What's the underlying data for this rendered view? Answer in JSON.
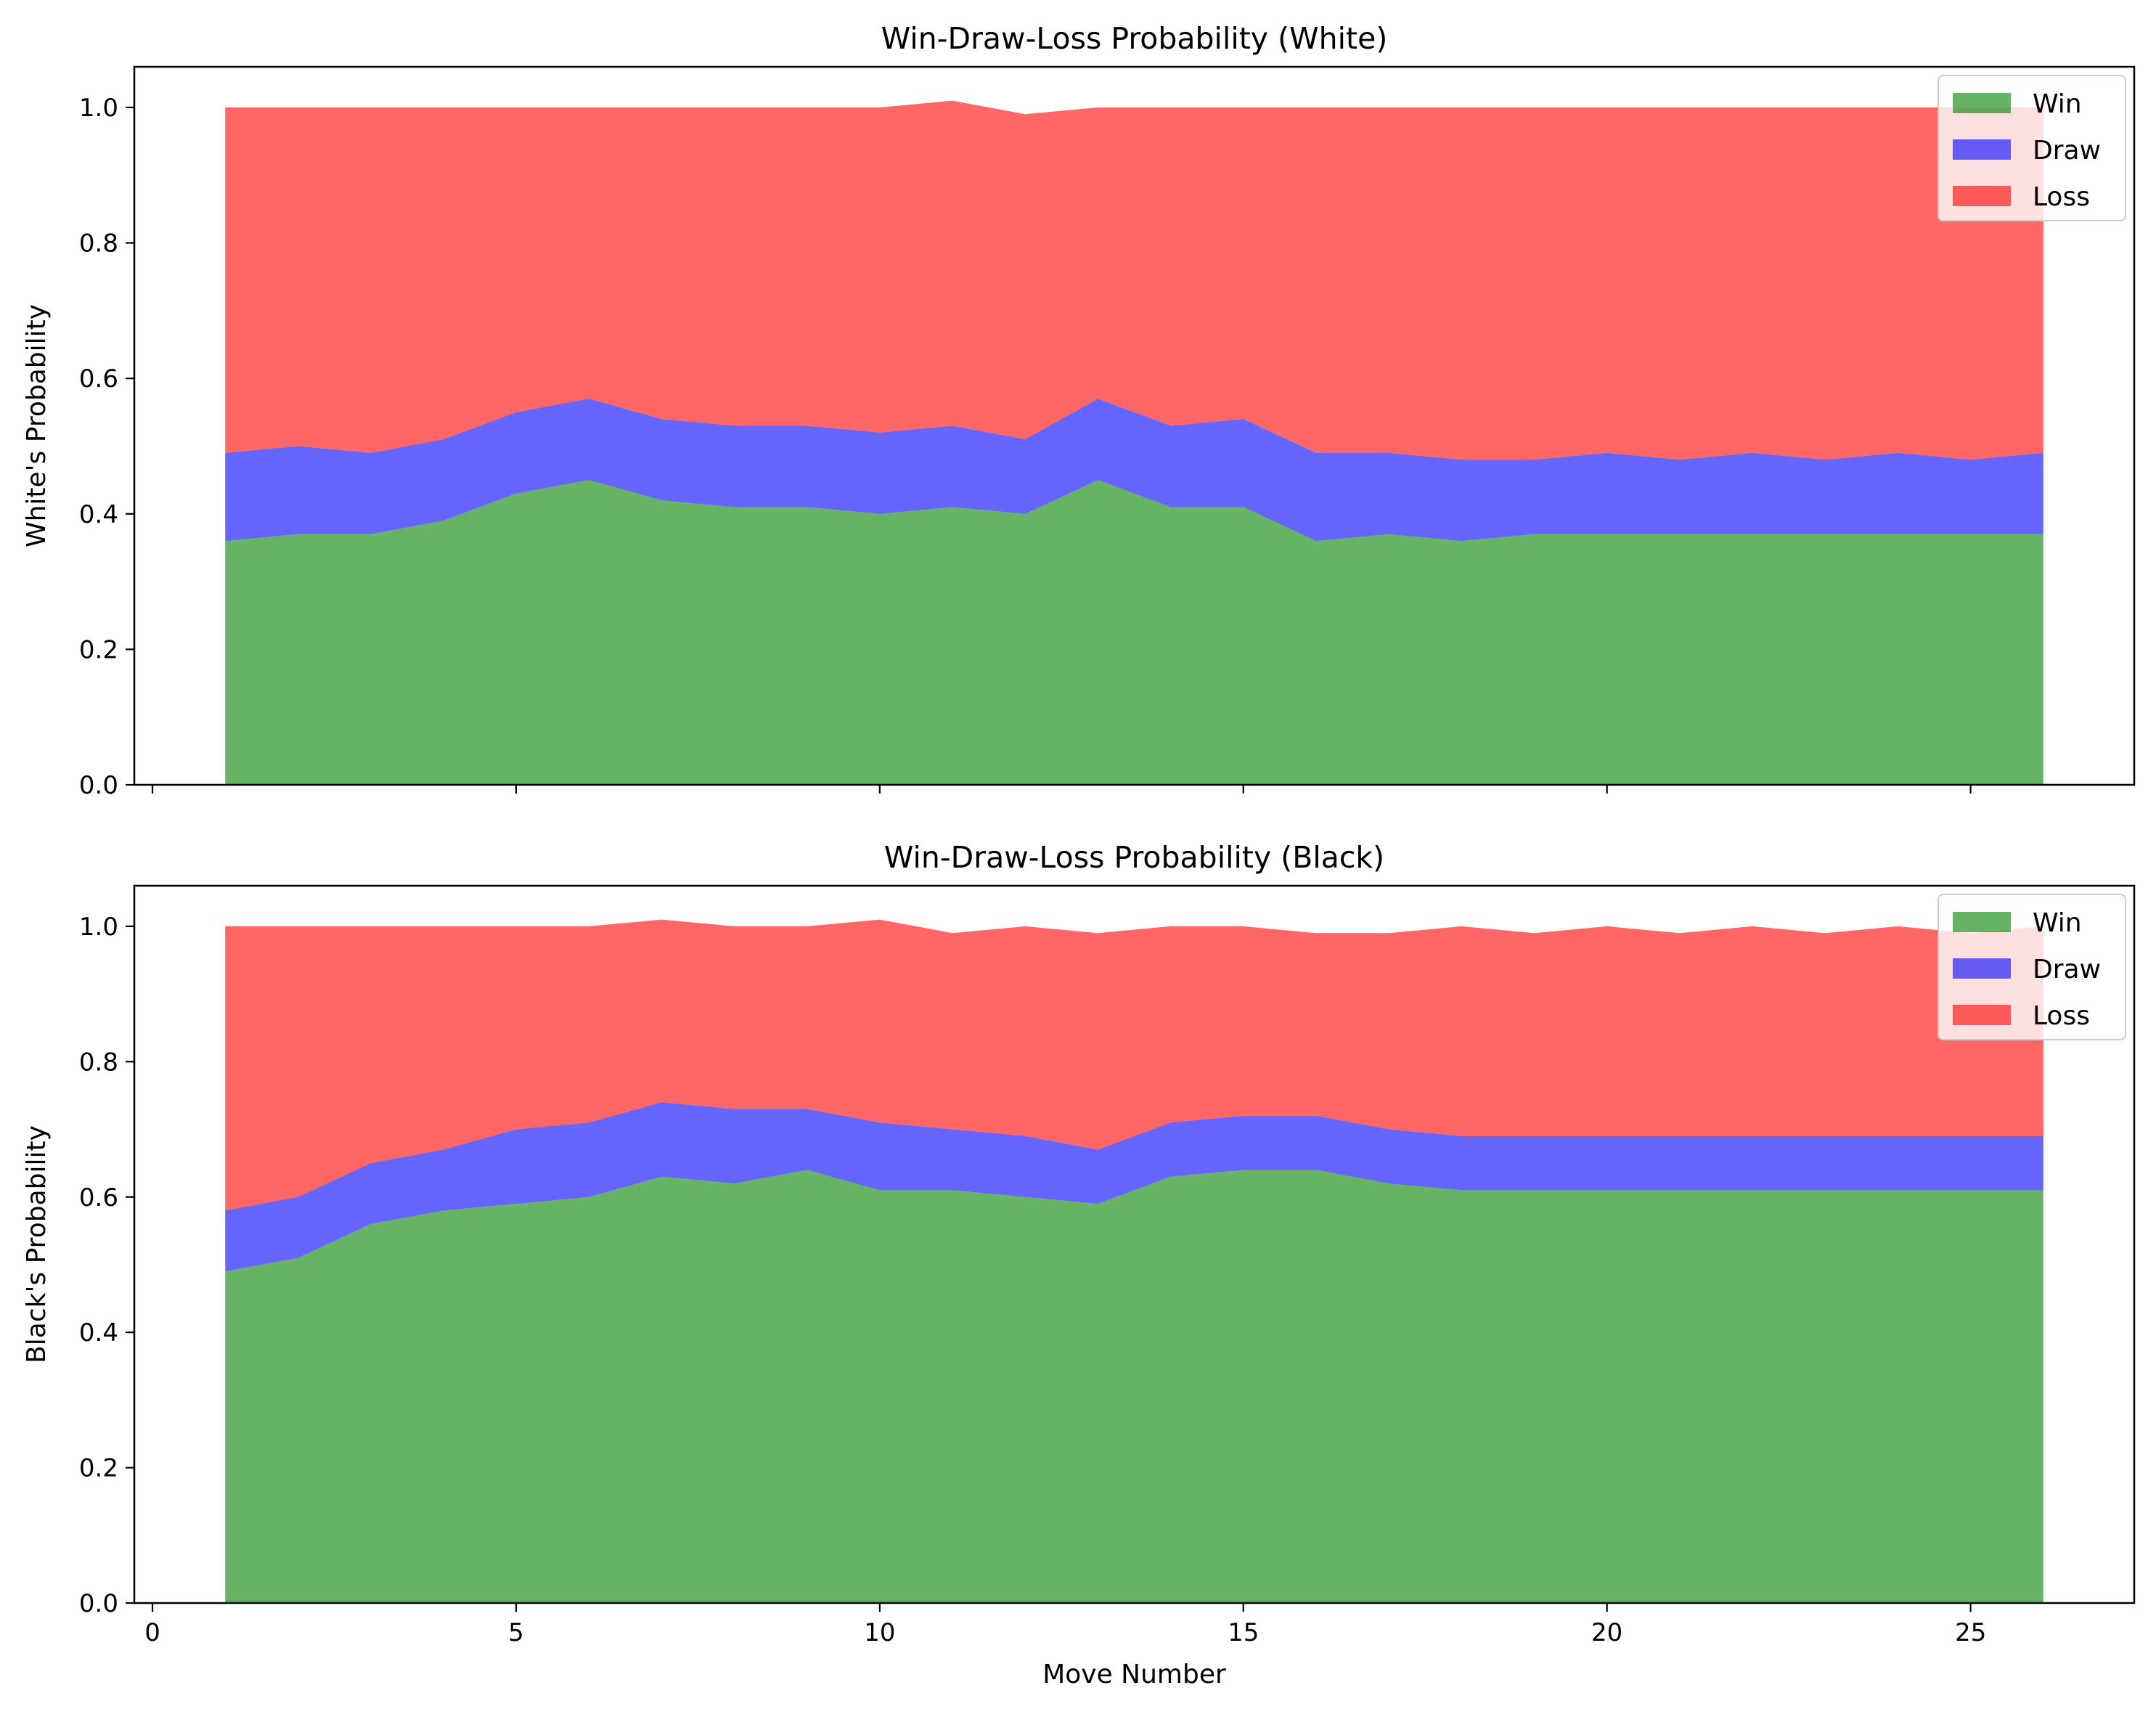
{
  "chart_data": [
    {
      "type": "area",
      "stacked": true,
      "title": "Win-Draw-Loss Probability (White)",
      "xlabel": "",
      "ylabel": "White's Probability",
      "x": [
        1,
        2,
        3,
        4,
        5,
        6,
        7,
        8,
        9,
        10,
        11,
        12,
        13,
        14,
        15,
        16,
        17,
        18,
        19,
        20,
        21,
        22,
        23,
        24,
        25,
        26
      ],
      "series": [
        {
          "name": "Win",
          "color": "#008000",
          "values": [
            0.36,
            0.37,
            0.37,
            0.39,
            0.43,
            0.45,
            0.42,
            0.41,
            0.41,
            0.4,
            0.41,
            0.4,
            0.45,
            0.41,
            0.41,
            0.36,
            0.37,
            0.36,
            0.37,
            0.37,
            0.37,
            0.37,
            0.37,
            0.37,
            0.37,
            0.37
          ]
        },
        {
          "name": "Draw",
          "color": "#0000ff",
          "values": [
            0.13,
            0.13,
            0.12,
            0.12,
            0.12,
            0.12,
            0.12,
            0.12,
            0.12,
            0.12,
            0.12,
            0.11,
            0.12,
            0.12,
            0.13,
            0.13,
            0.12,
            0.12,
            0.11,
            0.12,
            0.11,
            0.12,
            0.11,
            0.12,
            0.11,
            0.12
          ]
        },
        {
          "name": "Loss",
          "color": "#ff0000",
          "values": [
            0.51,
            0.5,
            0.51,
            0.49,
            0.45,
            0.43,
            0.46,
            0.47,
            0.47,
            0.48,
            0.48,
            0.48,
            0.43,
            0.47,
            0.46,
            0.51,
            0.51,
            0.52,
            0.52,
            0.51,
            0.52,
            0.51,
            0.52,
            0.51,
            0.52,
            0.51
          ]
        }
      ],
      "xlim": [
        -0.25,
        27.25
      ],
      "ylim": [
        0,
        1.06
      ],
      "xticks": [
        0,
        5,
        10,
        15,
        20,
        25
      ],
      "show_xtick_labels": false,
      "yticks": [
        0.0,
        0.2,
        0.4,
        0.6,
        0.8,
        1.0
      ],
      "ytick_labels": [
        "0.0",
        "0.2",
        "0.4",
        "0.6",
        "0.8",
        "1.0"
      ],
      "grid": false,
      "legend_position": "top-right",
      "opacity": 0.6
    },
    {
      "type": "area",
      "stacked": true,
      "title": "Win-Draw-Loss Probability (Black)",
      "xlabel": "Move Number",
      "ylabel": "Black's Probability",
      "x": [
        1,
        2,
        3,
        4,
        5,
        6,
        7,
        8,
        9,
        10,
        11,
        12,
        13,
        14,
        15,
        16,
        17,
        18,
        19,
        20,
        21,
        22,
        23,
        24,
        25,
        26
      ],
      "series": [
        {
          "name": "Win",
          "color": "#008000",
          "values": [
            0.49,
            0.51,
            0.56,
            0.58,
            0.59,
            0.6,
            0.63,
            0.62,
            0.64,
            0.61,
            0.61,
            0.6,
            0.59,
            0.63,
            0.64,
            0.64,
            0.62,
            0.61,
            0.61,
            0.61,
            0.61,
            0.61,
            0.61,
            0.61,
            0.61,
            0.61
          ]
        },
        {
          "name": "Draw",
          "color": "#0000ff",
          "values": [
            0.09,
            0.09,
            0.09,
            0.09,
            0.11,
            0.11,
            0.11,
            0.11,
            0.09,
            0.1,
            0.09,
            0.09,
            0.08,
            0.08,
            0.08,
            0.08,
            0.08,
            0.08,
            0.08,
            0.08,
            0.08,
            0.08,
            0.08,
            0.08,
            0.08,
            0.08
          ]
        },
        {
          "name": "Loss",
          "color": "#ff0000",
          "values": [
            0.42,
            0.4,
            0.35,
            0.33,
            0.3,
            0.29,
            0.27,
            0.27,
            0.27,
            0.3,
            0.29,
            0.31,
            0.32,
            0.29,
            0.28,
            0.27,
            0.29,
            0.31,
            0.3,
            0.31,
            0.3,
            0.31,
            0.3,
            0.31,
            0.3,
            0.31
          ]
        }
      ],
      "xlim": [
        -0.25,
        27.25
      ],
      "ylim": [
        0,
        1.06
      ],
      "xticks": [
        0,
        5,
        10,
        15,
        20,
        25
      ],
      "xtick_labels": [
        "0",
        "5",
        "10",
        "15",
        "20",
        "25"
      ],
      "show_xtick_labels": true,
      "yticks": [
        0.0,
        0.2,
        0.4,
        0.6,
        0.8,
        1.0
      ],
      "ytick_labels": [
        "0.0",
        "0.2",
        "0.4",
        "0.6",
        "0.8",
        "1.0"
      ],
      "grid": false,
      "legend_position": "top-right",
      "opacity": 0.6
    }
  ]
}
